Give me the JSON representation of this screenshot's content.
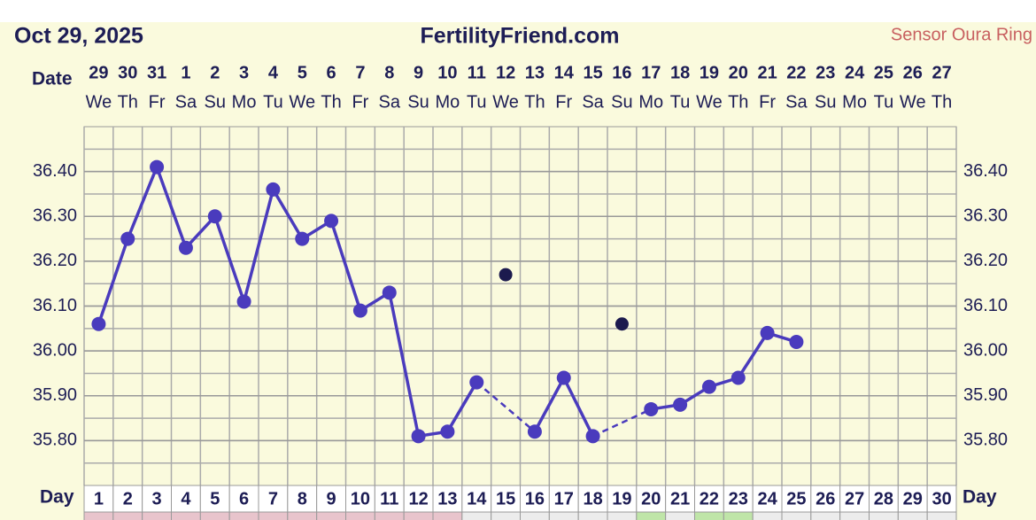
{
  "chart_data": {
    "type": "line",
    "title": "FertilityFriend.com",
    "date": "Oct 29, 2025",
    "source": "Sensor Oura Ring",
    "date_label": "Date",
    "day_label": "Day",
    "dates": [
      "29",
      "30",
      "31",
      "1",
      "2",
      "3",
      "4",
      "5",
      "6",
      "7",
      "8",
      "9",
      "10",
      "11",
      "12",
      "13",
      "14",
      "15",
      "16",
      "17",
      "18",
      "19",
      "20",
      "21",
      "22",
      "23",
      "24",
      "25",
      "26",
      "27"
    ],
    "weekdays": [
      "We",
      "Th",
      "Fr",
      "Sa",
      "Su",
      "Mo",
      "Tu",
      "We",
      "Th",
      "Fr",
      "Sa",
      "Su",
      "Mo",
      "Tu",
      "We",
      "Th",
      "Fr",
      "Sa",
      "Su",
      "Mo",
      "Tu",
      "We",
      "Th",
      "Fr",
      "Sa",
      "Su",
      "Mo",
      "Tu",
      "We",
      "Th"
    ],
    "categories": [
      "1",
      "2",
      "3",
      "4",
      "5",
      "6",
      "7",
      "8",
      "9",
      "10",
      "11",
      "12",
      "13",
      "14",
      "15",
      "16",
      "17",
      "18",
      "19",
      "20",
      "21",
      "22",
      "23",
      "24",
      "25",
      "26",
      "27",
      "28",
      "29",
      "30"
    ],
    "strip_colors": [
      "#e8c4cc",
      "#e8c4cc",
      "#e8c4cc",
      "#e8c4cc",
      "#e8c4cc",
      "#e8c4cc",
      "#e8c4cc",
      "#e8c4cc",
      "#e8c4cc",
      "#e8c4cc",
      "#e8c4cc",
      "#e8c4cc",
      "#e8c4cc",
      "#ececec",
      "#ececec",
      "#ececec",
      "#ececec",
      "#ececec",
      "#ececec",
      "#bfe5a8",
      "#ececec",
      "#bfe5a8",
      "#bfe5a8",
      "#ececec",
      "#ececec",
      "#ececec",
      "#ececec",
      "#ececec",
      "#ececec",
      "#ececec"
    ],
    "series": [
      {
        "color": "#4a3bbd",
        "values": [
          36.06,
          36.25,
          36.41,
          36.23,
          36.3,
          36.11,
          36.36,
          36.25,
          36.29,
          36.09,
          36.13,
          35.81,
          35.82,
          35.93,
          null,
          35.82,
          35.94,
          35.81,
          null,
          35.87,
          35.88,
          35.92,
          35.94,
          36.04,
          36.02,
          null,
          null,
          null,
          null,
          null
        ]
      },
      {
        "color": "#1c1a4e",
        "values": [
          null,
          null,
          null,
          null,
          null,
          null,
          null,
          null,
          null,
          null,
          null,
          null,
          null,
          null,
          36.17,
          null,
          null,
          null,
          36.06,
          null,
          null,
          null,
          null,
          null,
          null,
          null,
          null,
          null,
          null,
          null
        ]
      }
    ],
    "ylim": [
      35.7,
      36.5
    ],
    "yticks": [
      {
        "value": 35.8,
        "label": "35.80"
      },
      {
        "value": 35.9,
        "label": "35.90"
      },
      {
        "value": 36.0,
        "label": "36.00"
      },
      {
        "value": 36.1,
        "label": "36.10"
      },
      {
        "value": 36.2,
        "label": "36.20"
      },
      {
        "value": 36.3,
        "label": "36.30"
      },
      {
        "value": 36.4,
        "label": "36.40"
      }
    ],
    "grid": true
  }
}
